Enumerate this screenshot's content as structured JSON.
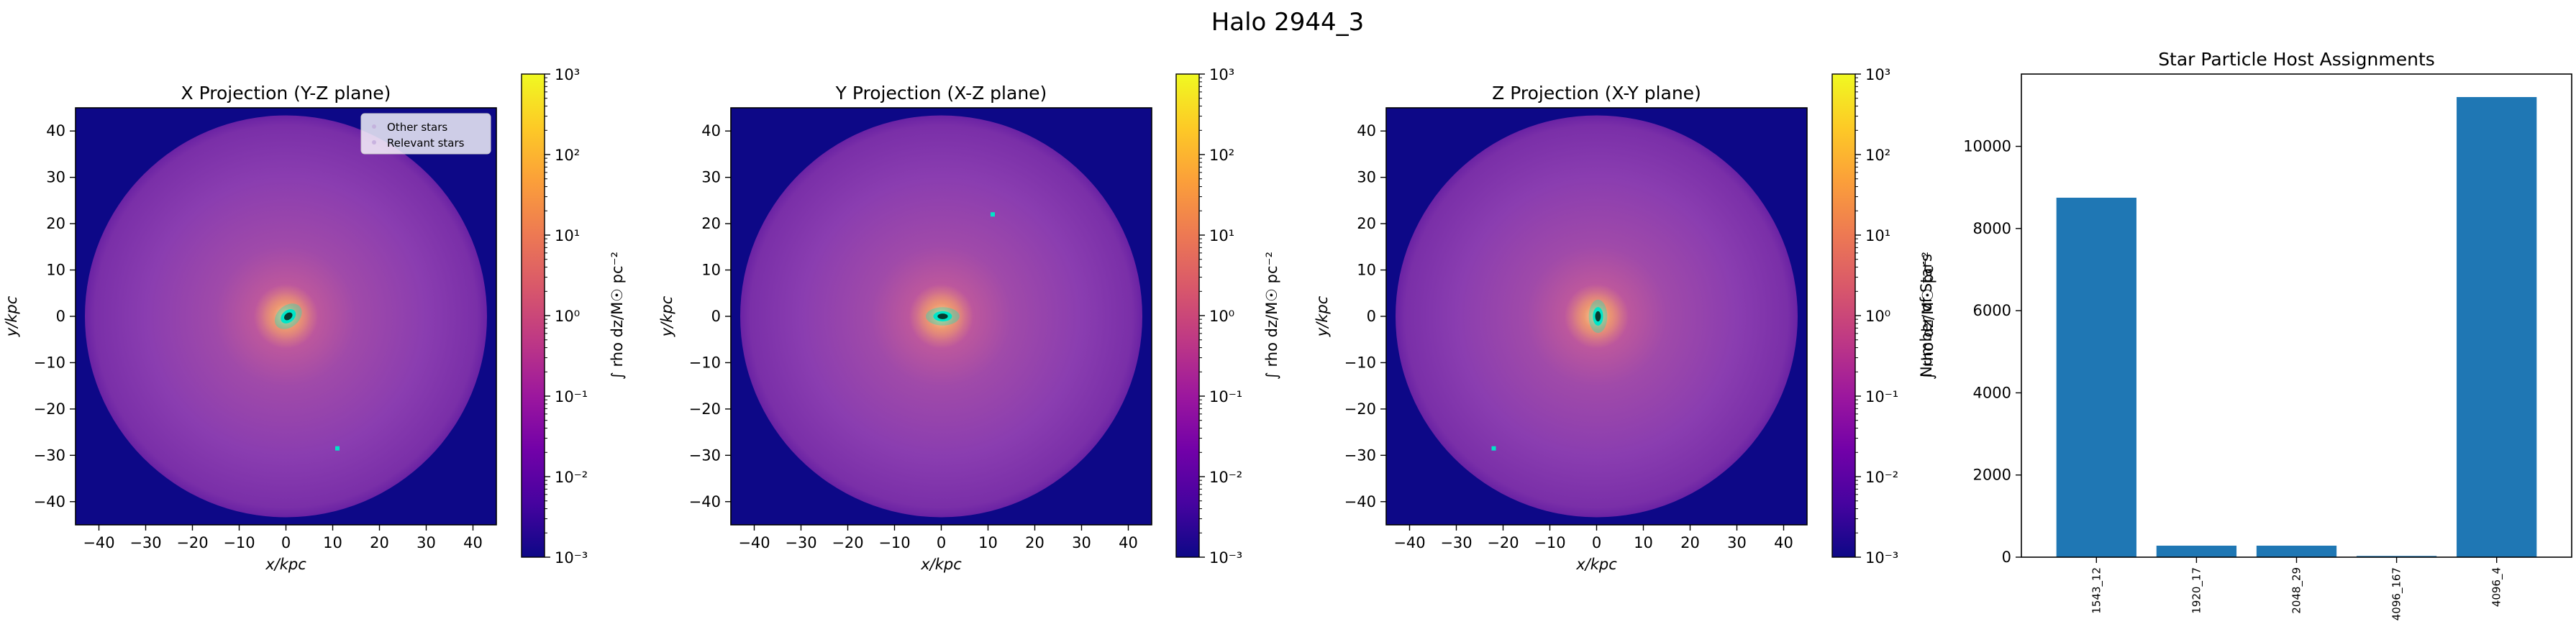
{
  "figure_title": "Halo 2944_3",
  "chart_data": [
    {
      "type": "heatmap",
      "title": "X Projection (Y-Z plane)",
      "xlabel": "x/kpc",
      "ylabel": "y/kpc",
      "xlim": [
        -45,
        45
      ],
      "ylim": [
        -45,
        45
      ],
      "xticks": [
        -40,
        -30,
        -20,
        -10,
        0,
        10,
        20,
        30,
        40
      ],
      "yticks": [
        -40,
        -30,
        -20,
        -10,
        0,
        10,
        20,
        30,
        40
      ],
      "colorbar": {
        "label": "∫ rho dz/M☉ pc⁻²",
        "scale": "log",
        "colormap": "plasma",
        "range": [
          0.001,
          1000
        ],
        "ticks": [
          "10⁻³",
          "10⁻²",
          "10⁻¹",
          "10⁰",
          "10¹",
          "10²",
          "10³"
        ]
      },
      "legend": {
        "placement": "top-right",
        "entries": [
          "Other stars",
          "Relevant stars"
        ]
      },
      "halo_radius_kpc": 43,
      "stars_color": "#00e5c8",
      "core": {
        "x": 0.5,
        "y": 0,
        "rx": 1.8,
        "ry": 1.3,
        "angle": -40
      },
      "stray_stars": [
        {
          "x": 11,
          "y": -28.5
        }
      ]
    },
    {
      "type": "heatmap",
      "title": "Y Projection (X-Z plane)",
      "xlabel": "x/kpc",
      "ylabel": "y/kpc",
      "xlim": [
        -45,
        45
      ],
      "ylim": [
        -45,
        45
      ],
      "xticks": [
        -40,
        -30,
        -20,
        -10,
        0,
        10,
        20,
        30,
        40
      ],
      "yticks": [
        -40,
        -30,
        -20,
        -10,
        0,
        10,
        20,
        30,
        40
      ],
      "colorbar": {
        "label": "∫ rho dz/M☉ pc⁻²",
        "scale": "log",
        "colormap": "plasma",
        "range": [
          0.001,
          1000
        ],
        "ticks": [
          "10⁻³",
          "10⁻²",
          "10⁻¹",
          "10⁰",
          "10¹",
          "10²",
          "10³"
        ]
      },
      "halo_radius_kpc": 43,
      "stars_color": "#00e5c8",
      "core": {
        "x": 0.3,
        "y": 0,
        "rx": 2.0,
        "ry": 1.1,
        "angle": 0
      },
      "stray_stars": [
        {
          "x": 11,
          "y": 22
        }
      ]
    },
    {
      "type": "heatmap",
      "title": "Z Projection (X-Y plane)",
      "xlabel": "x/kpc",
      "ylabel": "y/kpc",
      "xlim": [
        -45,
        45
      ],
      "ylim": [
        -45,
        45
      ],
      "xticks": [
        -40,
        -30,
        -20,
        -10,
        0,
        10,
        20,
        30,
        40
      ],
      "yticks": [
        -40,
        -30,
        -20,
        -10,
        0,
        10,
        20,
        30,
        40
      ],
      "colorbar": {
        "label": "∫ rho dz/M☉ pc⁻²",
        "scale": "log",
        "colormap": "plasma",
        "range": [
          0.001,
          1000
        ],
        "ticks": [
          "10⁻³",
          "10⁻²",
          "10⁻¹",
          "10⁰",
          "10¹",
          "10²",
          "10³"
        ]
      },
      "halo_radius_kpc": 43,
      "stars_color": "#00e5c8",
      "core": {
        "x": 0.3,
        "y": 0,
        "rx": 1.1,
        "ry": 2.0,
        "angle": 0
      },
      "stray_stars": [
        {
          "x": -22,
          "y": -28.5
        }
      ]
    },
    {
      "type": "bar",
      "title": "Star Particle Host Assignments",
      "xlabel": "",
      "ylabel": "Number of Stars",
      "categories": [
        "1543_12",
        "1920_17",
        "2048_29",
        "4096_167",
        "4096_4"
      ],
      "values": [
        8750,
        280,
        280,
        30,
        11200
      ],
      "ylim": [
        0,
        11760
      ],
      "yticks": [
        0,
        2000,
        4000,
        6000,
        8000,
        10000
      ],
      "bar_color": "#1f77b4"
    }
  ]
}
